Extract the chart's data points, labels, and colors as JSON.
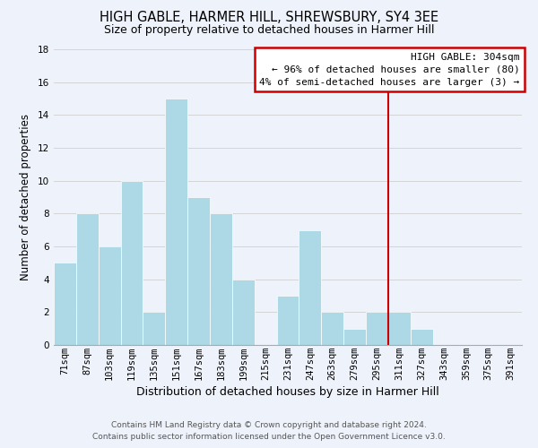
{
  "title": "HIGH GABLE, HARMER HILL, SHREWSBURY, SY4 3EE",
  "subtitle": "Size of property relative to detached houses in Harmer Hill",
  "xlabel": "Distribution of detached houses by size in Harmer Hill",
  "ylabel": "Number of detached properties",
  "footer_line1": "Contains HM Land Registry data © Crown copyright and database right 2024.",
  "footer_line2": "Contains public sector information licensed under the Open Government Licence v3.0.",
  "bin_labels": [
    "71sqm",
    "87sqm",
    "103sqm",
    "119sqm",
    "135sqm",
    "151sqm",
    "167sqm",
    "183sqm",
    "199sqm",
    "215sqm",
    "231sqm",
    "247sqm",
    "263sqm",
    "279sqm",
    "295sqm",
    "311sqm",
    "327sqm",
    "343sqm",
    "359sqm",
    "375sqm",
    "391sqm"
  ],
  "bar_values": [
    5,
    8,
    6,
    10,
    2,
    15,
    9,
    8,
    4,
    0,
    3,
    7,
    2,
    1,
    2,
    2,
    1,
    0,
    0,
    0,
    0
  ],
  "bar_color": "#add8e6",
  "bar_edge_color": "#ffffff",
  "grid_color": "#d0d0d0",
  "ylim": [
    0,
    18
  ],
  "yticks": [
    0,
    2,
    4,
    6,
    8,
    10,
    12,
    14,
    16,
    18
  ],
  "annotation_title": "HIGH GABLE: 304sqm",
  "annotation_line1": "← 96% of detached houses are smaller (80)",
  "annotation_line2": "4% of semi-detached houses are larger (3) →",
  "vline_bin": 14.5,
  "vline_color": "#cc0000",
  "annotation_box_color": "#ffffff",
  "annotation_box_edge_color": "#cc0000",
  "background_color": "#eef2fb",
  "title_fontsize": 10.5,
  "subtitle_fontsize": 9,
  "xlabel_fontsize": 9,
  "ylabel_fontsize": 8.5,
  "tick_fontsize": 7.5,
  "footer_fontsize": 6.5,
  "annotation_fontsize": 8
}
